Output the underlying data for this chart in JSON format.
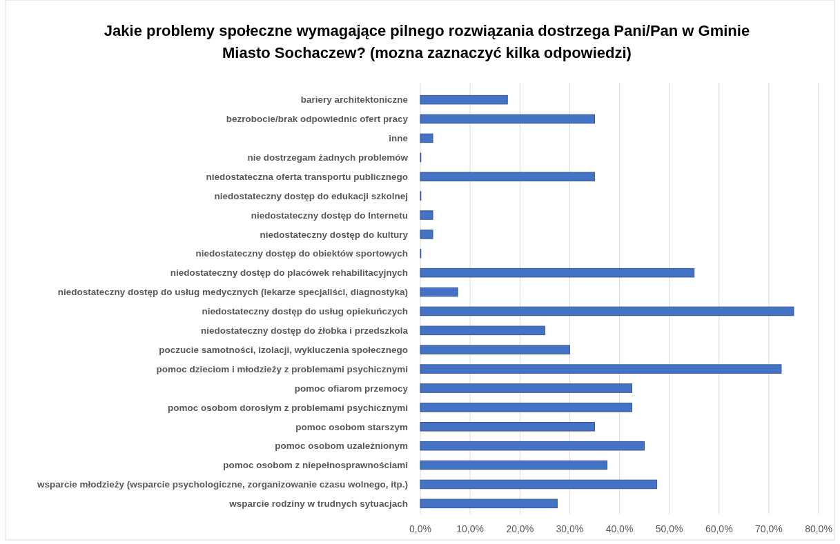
{
  "chart_data": {
    "type": "bar",
    "orientation": "horizontal",
    "title": "Jakie problemy społeczne wymagające pilnego rozwiązania dostrzega Pani/Pan w Gminie Miasto Sochaczew? (mozna zaznaczyć kilka odpowiedzi)",
    "categories": [
      "bariery architektoniczne",
      "bezrobocie/brak odpowiednic ofert pracy",
      "inne",
      "nie dostrzegam żadnych problemów",
      "niedostateczna oferta transportu publicznego",
      "niedostateczny dostęp do edukacji szkolnej",
      "niedostateczny dostęp do Internetu",
      "niedostateczny dostęp do kultury",
      "niedostateczny dostęp do obiektów sportowych",
      "niedostateczny dostęp do placówek rehabilitacyjnych",
      "niedostateczny dostęp do usług medycznych (lekarze specjaliści, diagnostyka)",
      "niedostateczny dostęp do usług opiekuńczych",
      "niedostateczny dostęp do żłobka i przedszkola",
      "poczucie samotności, izolacji, wykluczenia społecznego",
      "pomoc dzieciom i młodzieży z problemami psychicznymi",
      "pomoc ofiarom przemocy",
      "pomoc osobom dorosłym z problemami psychicznymi",
      "pomoc osobom starszym",
      "pomoc osobom uzależnionym",
      "pomoc osobom z niepełnosprawnościami",
      "wsparcie młodzieży (wsparcie psychologiczne, zorganizowanie czasu wolnego, itp.)",
      "wsparcie rodziny w trudnych sytuacjach"
    ],
    "values": [
      17.5,
      35,
      2.5,
      0,
      35,
      0,
      2.5,
      2.5,
      0,
      55,
      7.5,
      75,
      25,
      30,
      72.5,
      42.5,
      42.5,
      35,
      45,
      37.5,
      47.5,
      27.5
    ],
    "color": "#4472c4",
    "xlim": [
      0,
      80
    ],
    "xticks": [
      {
        "value": 0,
        "label": "0,0%"
      },
      {
        "value": 10,
        "label": "10,0%"
      },
      {
        "value": 20,
        "label": "20,0%"
      },
      {
        "value": 30,
        "label": "30,0%"
      },
      {
        "value": 40,
        "label": "40,0%"
      },
      {
        "value": 50,
        "label": "50,0%"
      },
      {
        "value": 60,
        "label": "60,0%"
      },
      {
        "value": 70,
        "label": "70,0%"
      },
      {
        "value": 80,
        "label": "80,0%"
      }
    ],
    "grid": "x"
  }
}
